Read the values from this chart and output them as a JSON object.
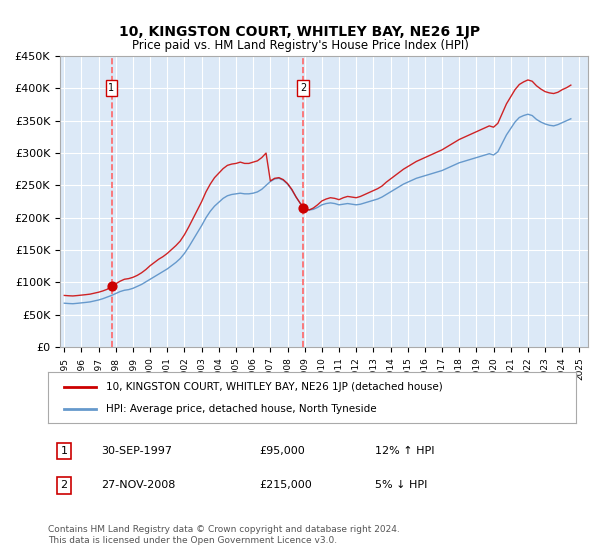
{
  "title": "10, KINGSTON COURT, WHITLEY BAY, NE26 1JP",
  "subtitle": "Price paid vs. HM Land Registry's House Price Index (HPI)",
  "ylabel": "",
  "xlabel": "",
  "legend_line1": "10, KINGSTON COURT, WHITLEY BAY, NE26 1JP (detached house)",
  "legend_line2": "HPI: Average price, detached house, North Tyneside",
  "transaction1_date": "30-SEP-1997",
  "transaction1_price": 95000,
  "transaction1_hpi": "12% ↑ HPI",
  "transaction2_date": "27-NOV-2008",
  "transaction2_price": 215000,
  "transaction2_hpi": "5% ↓ HPI",
  "footnote": "Contains HM Land Registry data © Crown copyright and database right 2024.\nThis data is licensed under the Open Government Licence v3.0.",
  "bg_color": "#dce9f7",
  "plot_bg": "#dce9f7",
  "red_line_color": "#cc0000",
  "blue_line_color": "#6699cc",
  "marker_color": "#cc0000",
  "dashed_line_color": "#ff6666",
  "ylim": [
    0,
    450000
  ],
  "yticks": [
    0,
    50000,
    100000,
    150000,
    200000,
    250000,
    300000,
    350000,
    400000,
    450000
  ],
  "ytick_labels": [
    "£0",
    "£50K",
    "£100K",
    "£150K",
    "£200K",
    "£250K",
    "£300K",
    "£350K",
    "£400K",
    "£450K"
  ],
  "xtick_labels": [
    "1995",
    "1996",
    "1997",
    "1998",
    "1999",
    "2000",
    "2001",
    "2002",
    "2003",
    "2004",
    "2005",
    "2006",
    "2007",
    "2008",
    "2009",
    "2010",
    "2011",
    "2012",
    "2013",
    "2014",
    "2015",
    "2016",
    "2017",
    "2018",
    "2019",
    "2020",
    "2021",
    "2022",
    "2023",
    "2024",
    "2025"
  ],
  "hpi_years": [
    1995.0,
    1995.25,
    1995.5,
    1995.75,
    1996.0,
    1996.25,
    1996.5,
    1996.75,
    1997.0,
    1997.25,
    1997.5,
    1997.75,
    1998.0,
    1998.25,
    1998.5,
    1998.75,
    1999.0,
    1999.25,
    1999.5,
    1999.75,
    2000.0,
    2000.25,
    2000.5,
    2000.75,
    2001.0,
    2001.25,
    2001.5,
    2001.75,
    2002.0,
    2002.25,
    2002.5,
    2002.75,
    2003.0,
    2003.25,
    2003.5,
    2003.75,
    2004.0,
    2004.25,
    2004.5,
    2004.75,
    2005.0,
    2005.25,
    2005.5,
    2005.75,
    2006.0,
    2006.25,
    2006.5,
    2006.75,
    2007.0,
    2007.25,
    2007.5,
    2007.75,
    2008.0,
    2008.25,
    2008.5,
    2008.75,
    2009.0,
    2009.25,
    2009.5,
    2009.75,
    2010.0,
    2010.25,
    2010.5,
    2010.75,
    2011.0,
    2011.25,
    2011.5,
    2011.75,
    2012.0,
    2012.25,
    2012.5,
    2012.75,
    2013.0,
    2013.25,
    2013.5,
    2013.75,
    2014.0,
    2014.25,
    2014.5,
    2014.75,
    2015.0,
    2015.25,
    2015.5,
    2015.75,
    2016.0,
    2016.25,
    2016.5,
    2016.75,
    2017.0,
    2017.25,
    2017.5,
    2017.75,
    2018.0,
    2018.25,
    2018.5,
    2018.75,
    2019.0,
    2019.25,
    2019.5,
    2019.75,
    2020.0,
    2020.25,
    2020.5,
    2020.75,
    2021.0,
    2021.25,
    2021.5,
    2021.75,
    2022.0,
    2022.25,
    2022.5,
    2022.75,
    2023.0,
    2023.25,
    2023.5,
    2023.75,
    2024.0,
    2024.25,
    2024.5
  ],
  "hpi_values": [
    68000,
    67500,
    67200,
    67800,
    68500,
    69200,
    70000,
    71500,
    73000,
    75000,
    77500,
    80000,
    83000,
    86000,
    88000,
    89000,
    91000,
    94000,
    97000,
    101000,
    105000,
    109000,
    113000,
    117000,
    121000,
    126000,
    131000,
    137000,
    145000,
    155000,
    166000,
    177000,
    188000,
    200000,
    210000,
    218000,
    224000,
    230000,
    234000,
    236000,
    237000,
    238000,
    237000,
    237000,
    238000,
    240000,
    244000,
    250000,
    256000,
    260000,
    261000,
    258000,
    252000,
    243000,
    232000,
    222000,
    215000,
    212000,
    213000,
    216000,
    220000,
    222000,
    223000,
    222000,
    220000,
    221000,
    222000,
    221000,
    220000,
    221000,
    223000,
    225000,
    227000,
    229000,
    232000,
    236000,
    240000,
    244000,
    248000,
    252000,
    255000,
    258000,
    261000,
    263000,
    265000,
    267000,
    269000,
    271000,
    273000,
    276000,
    279000,
    282000,
    285000,
    287000,
    289000,
    291000,
    293000,
    295000,
    297000,
    299000,
    297000,
    302000,
    315000,
    328000,
    338000,
    348000,
    355000,
    358000,
    360000,
    358000,
    352000,
    348000,
    345000,
    343000,
    342000,
    344000,
    347000,
    350000,
    353000
  ],
  "price_paid_years": [
    1997.75,
    2008.9
  ],
  "price_paid_values": [
    95000,
    215000
  ],
  "red_hpi_years": [
    1995.0,
    1995.25,
    1995.5,
    1995.75,
    1996.0,
    1996.25,
    1996.5,
    1996.75,
    1997.0,
    1997.25,
    1997.5,
    1997.75,
    1998.0,
    1998.25,
    1998.5,
    1998.75,
    1999.0,
    1999.25,
    1999.5,
    1999.75,
    2000.0,
    2000.25,
    2000.5,
    2000.75,
    2001.0,
    2001.25,
    2001.5,
    2001.75,
    2002.0,
    2002.25,
    2002.5,
    2002.75,
    2003.0,
    2003.25,
    2003.5,
    2003.75,
    2004.0,
    2004.25,
    2004.5,
    2004.75,
    2005.0,
    2005.25,
    2005.5,
    2005.75,
    2006.0,
    2006.25,
    2006.5,
    2006.75,
    2007.0,
    2007.25,
    2007.5,
    2007.75,
    2008.0,
    2008.25,
    2008.5,
    2008.75,
    2009.0,
    2009.25,
    2009.5,
    2009.75,
    2010.0,
    2010.25,
    2010.5,
    2010.75,
    2011.0,
    2011.25,
    2011.5,
    2011.75,
    2012.0,
    2012.25,
    2012.5,
    2012.75,
    2013.0,
    2013.25,
    2013.5,
    2013.75,
    2014.0,
    2014.25,
    2014.5,
    2014.75,
    2015.0,
    2015.25,
    2015.5,
    2015.75,
    2016.0,
    2016.25,
    2016.5,
    2016.75,
    2017.0,
    2017.25,
    2017.5,
    2017.75,
    2018.0,
    2018.25,
    2018.5,
    2018.75,
    2019.0,
    2019.25,
    2019.5,
    2019.75,
    2020.0,
    2020.25,
    2020.5,
    2020.75,
    2021.0,
    2021.25,
    2021.5,
    2021.75,
    2022.0,
    2022.25,
    2022.5,
    2022.75,
    2023.0,
    2023.25,
    2023.5,
    2023.75,
    2024.0,
    2024.25,
    2024.5
  ],
  "red_hpi_values": [
    80000,
    79500,
    79200,
    79800,
    80500,
    81200,
    82000,
    83500,
    85000,
    87000,
    89500,
    95000,
    98000,
    102000,
    105000,
    106000,
    108000,
    111000,
    115000,
    120000,
    126000,
    131000,
    136000,
    140000,
    145000,
    151000,
    157000,
    164000,
    174000,
    186000,
    199000,
    212000,
    225000,
    240000,
    252000,
    262000,
    269000,
    276000,
    281000,
    283000,
    284000,
    286000,
    284000,
    284000,
    286000,
    288000,
    293000,
    300000,
    257000,
    261000,
    262000,
    259000,
    253000,
    244000,
    232000,
    222000,
    215000,
    212000,
    215000,
    220000,
    226000,
    229000,
    231000,
    230000,
    228000,
    231000,
    233000,
    232000,
    231000,
    233000,
    236000,
    239000,
    242000,
    245000,
    249000,
    255000,
    260000,
    265000,
    270000,
    275000,
    279000,
    283000,
    287000,
    290000,
    293000,
    296000,
    299000,
    302000,
    305000,
    309000,
    313000,
    317000,
    321000,
    324000,
    327000,
    330000,
    333000,
    336000,
    339000,
    342000,
    340000,
    346000,
    361000,
    376000,
    387000,
    398000,
    406000,
    410000,
    413000,
    411000,
    404000,
    399000,
    395000,
    393000,
    392000,
    394000,
    398000,
    401000,
    405000
  ],
  "vline1_x": 1997.75,
  "vline2_x": 2008.9,
  "xlim": [
    1994.75,
    2025.5
  ]
}
